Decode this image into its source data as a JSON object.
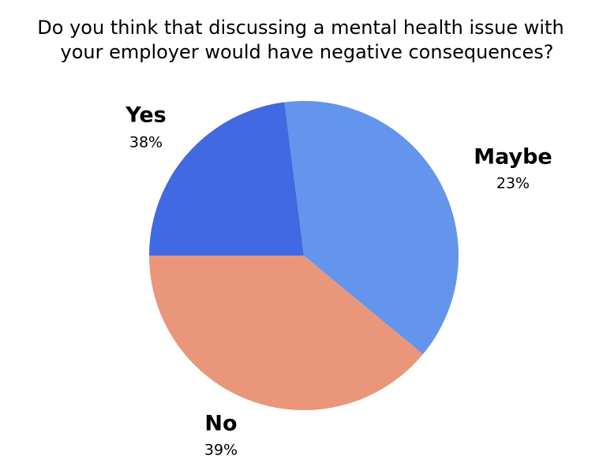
{
  "chart_data": {
    "type": "pie",
    "title": [
      "Do you think that discussing a mental health issue with",
      "your employer would have negative consequences?"
    ],
    "categories": [
      "Yes",
      "Maybe",
      "No"
    ],
    "values": [
      38,
      23,
      39
    ],
    "value_labels": [
      "38%",
      "23%",
      "39%"
    ],
    "colors": [
      "#6495ED",
      "#4169E1",
      "#E9967A"
    ]
  }
}
